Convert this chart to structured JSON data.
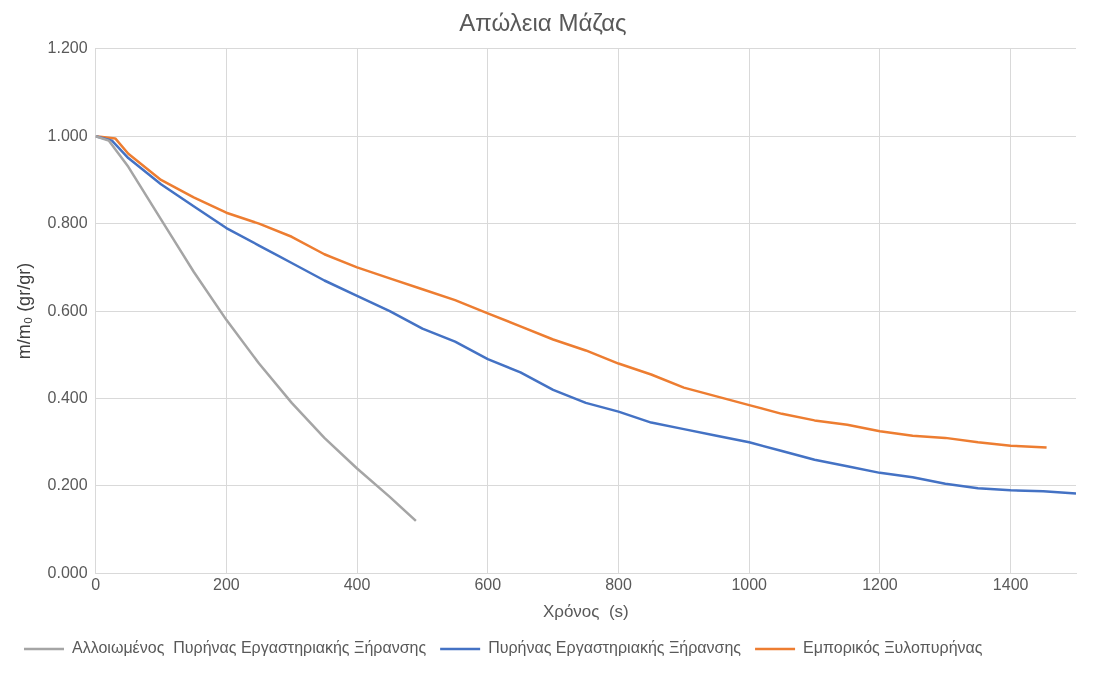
{
  "chart_data": {
    "type": "line",
    "title": "Απώλεια Μάζας",
    "xlabel": "Χρόνος  (s)",
    "ylabel": "m/m₀ (gr/gr)",
    "xlim": [
      0,
      1500
    ],
    "xticks": [
      0,
      200,
      400,
      600,
      800,
      1000,
      1200,
      1400
    ],
    "ylim": [
      0,
      1.2
    ],
    "yticks": [
      {
        "value": 0,
        "label": "0.000"
      },
      {
        "value": 0.2,
        "label": "0.200"
      },
      {
        "value": 0.4,
        "label": "0.400"
      },
      {
        "value": 0.6,
        "label": "0.600"
      },
      {
        "value": 0.8,
        "label": "0.800"
      },
      {
        "value": 1.0,
        "label": "1.000"
      },
      {
        "value": 1.2,
        "label": "1.200"
      }
    ],
    "grid": true,
    "legend": "bottom",
    "marker": "none",
    "line_style": "solid",
    "series": [
      {
        "name": "Αλλοιωμένος  Πυρήνας Εργαστηριακής Ξήρανσης",
        "color": "#a5a5a5",
        "x": [
          0,
          20,
          50,
          100,
          150,
          200,
          250,
          300,
          350,
          400,
          450,
          490
        ],
        "values": [
          1.0,
          0.99,
          0.93,
          0.81,
          0.69,
          0.58,
          0.48,
          0.39,
          0.31,
          0.24,
          0.175,
          0.12
        ]
      },
      {
        "name": "Πυρήνας Εργαστηριακής Ξήρανσης",
        "color": "#4472c4",
        "x": [
          0,
          25,
          50,
          100,
          150,
          200,
          250,
          300,
          350,
          400,
          450,
          500,
          550,
          600,
          650,
          700,
          750,
          800,
          850,
          900,
          950,
          1000,
          1050,
          1100,
          1150,
          1200,
          1250,
          1300,
          1350,
          1400,
          1450,
          1500
        ],
        "values": [
          1.0,
          0.99,
          0.95,
          0.89,
          0.84,
          0.79,
          0.75,
          0.71,
          0.67,
          0.635,
          0.6,
          0.56,
          0.53,
          0.49,
          0.46,
          0.42,
          0.39,
          0.37,
          0.345,
          0.33,
          0.315,
          0.3,
          0.28,
          0.26,
          0.245,
          0.23,
          0.22,
          0.205,
          0.195,
          0.19,
          0.188,
          0.183
        ]
      },
      {
        "name": "Εμπορικός Ξυλοπυρήνας",
        "color": "#ed7d31",
        "x": [
          0,
          30,
          50,
          100,
          150,
          200,
          250,
          300,
          350,
          400,
          450,
          500,
          550,
          600,
          650,
          700,
          750,
          800,
          850,
          900,
          950,
          1000,
          1050,
          1100,
          1150,
          1200,
          1250,
          1300,
          1350,
          1400,
          1455
        ],
        "values": [
          1.0,
          0.995,
          0.96,
          0.9,
          0.86,
          0.825,
          0.8,
          0.77,
          0.73,
          0.7,
          0.675,
          0.65,
          0.625,
          0.595,
          0.565,
          0.535,
          0.51,
          0.48,
          0.455,
          0.425,
          0.405,
          0.385,
          0.365,
          0.35,
          0.34,
          0.325,
          0.315,
          0.31,
          0.3,
          0.292,
          0.288
        ]
      }
    ]
  }
}
